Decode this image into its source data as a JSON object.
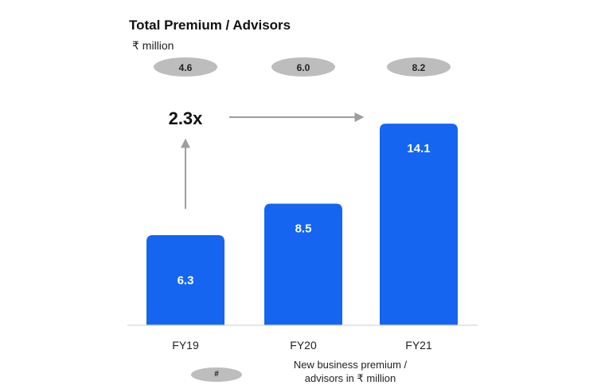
{
  "chart_data": {
    "type": "bar",
    "title": "Total Premium / Advisors",
    "subtitle": "₹ million",
    "categories": [
      "FY19",
      "FY20",
      "FY21"
    ],
    "values": [
      6.3,
      8.5,
      14.1
    ],
    "secondary_values": [
      4.6,
      6.0,
      8.2
    ],
    "secondary_labels": [
      "4.6",
      "6.0",
      "8.2"
    ],
    "value_labels": [
      "6.3",
      "8.5",
      "14.1"
    ],
    "growth_annotation": "2.3x",
    "ylim": [
      0,
      16
    ],
    "grid": false,
    "bar_color": "#1565f0",
    "pill_color": "#bdbdbd",
    "arrow_color": "#9e9e9e",
    "legend": {
      "marker_label": "#",
      "text_line1": "New business premium /",
      "text_line2": "advisors in ₹ million"
    }
  }
}
